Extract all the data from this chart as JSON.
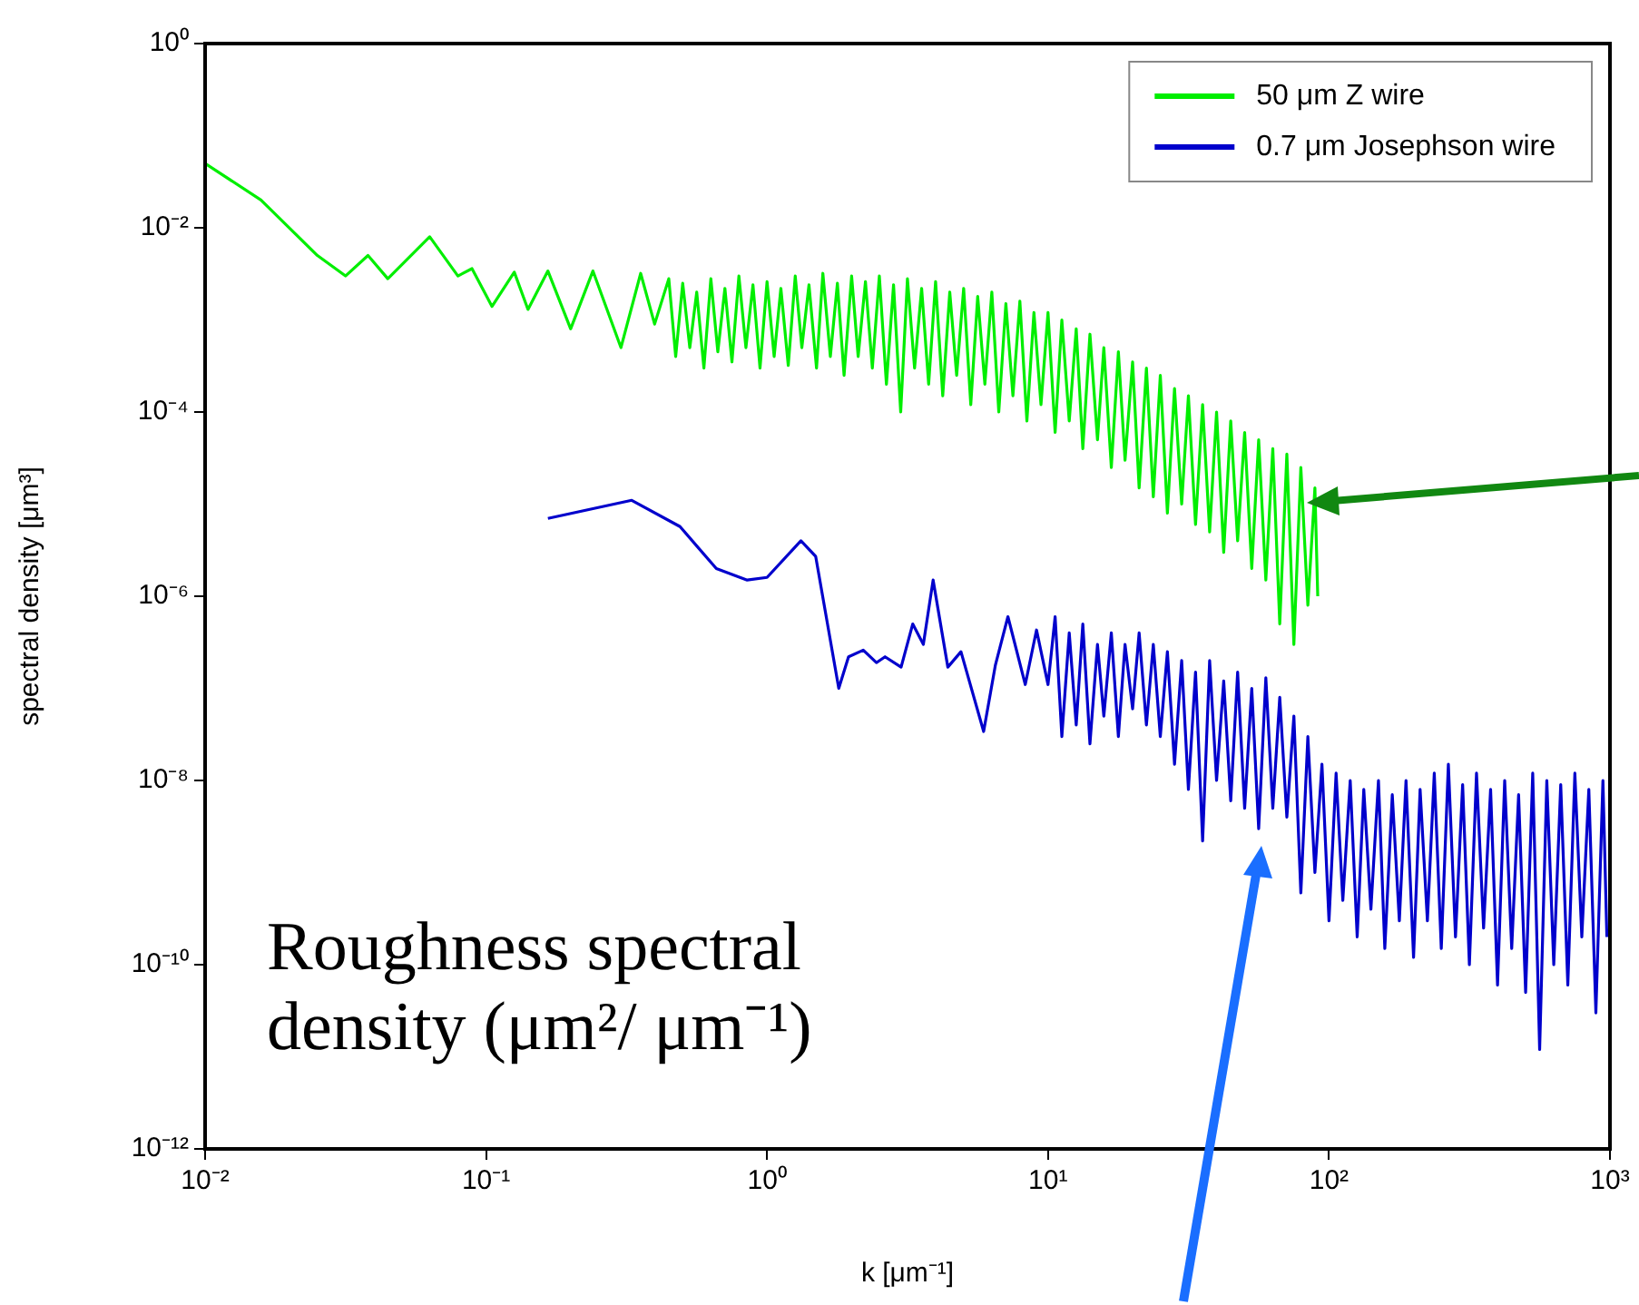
{
  "chart_data": {
    "type": "line",
    "xlabel": "k [μm⁻¹]",
    "ylabel": "spectral density [μm³]",
    "log": "xy",
    "grid": false,
    "legend": "top right",
    "marker": "none",
    "line_style": "solid",
    "xlim": [
      0.01,
      1000
    ],
    "xticks": [
      {
        "value": 0.01,
        "label": "10⁻²"
      },
      {
        "value": 0.1,
        "label": "10⁻¹"
      },
      {
        "value": 1,
        "label": "10⁰"
      },
      {
        "value": 10,
        "label": "10¹"
      },
      {
        "value": 100,
        "label": "10²"
      },
      {
        "value": 1000,
        "label": "10³"
      }
    ],
    "ylim": [
      1e-12,
      1
    ],
    "yticks": [
      {
        "value": 1e-12,
        "label": "10⁻¹²"
      },
      {
        "value": 1e-10,
        "label": "10⁻¹⁰"
      },
      {
        "value": 1e-08,
        "label": "10⁻⁸"
      },
      {
        "value": 1e-06,
        "label": "10⁻⁶"
      },
      {
        "value": 0.0001,
        "label": "10⁻⁴"
      },
      {
        "value": 0.01,
        "label": "10⁻²"
      },
      {
        "value": 1,
        "label": "10⁰"
      }
    ],
    "annotations": [
      "Roughness spectral density (μm²/ μm⁻¹)"
    ],
    "series": [
      {
        "name": "50 μm Z wire",
        "color": "#00ee00",
        "x": [
          0.01,
          0.0158,
          0.0251,
          0.0316,
          0.038,
          0.0447,
          0.063,
          0.0794,
          0.0891,
          0.105,
          0.126,
          0.141,
          0.166,
          0.2,
          0.24,
          0.302,
          0.355,
          0.398,
          0.447,
          0.473,
          0.501,
          0.531,
          0.562,
          0.596,
          0.631,
          0.668,
          0.708,
          0.75,
          0.794,
          0.841,
          0.891,
          0.944,
          1.0,
          1.06,
          1.12,
          1.19,
          1.26,
          1.33,
          1.41,
          1.5,
          1.58,
          1.68,
          1.78,
          1.88,
          2.0,
          2.11,
          2.24,
          2.37,
          2.51,
          2.66,
          2.82,
          2.99,
          3.16,
          3.35,
          3.55,
          3.76,
          3.98,
          4.22,
          4.47,
          4.73,
          5.01,
          5.31,
          5.62,
          5.96,
          6.31,
          6.68,
          7.08,
          7.5,
          7.94,
          8.41,
          8.91,
          9.44,
          10,
          10.6,
          11.2,
          11.9,
          12.6,
          13.3,
          14.1,
          15,
          15.8,
          16.8,
          17.8,
          18.8,
          20,
          21.1,
          22.4,
          23.7,
          25.1,
          26.6,
          28.2,
          29.9,
          31.6,
          33.5,
          35.5,
          37.6,
          39.8,
          42.2,
          44.7,
          47.3,
          50.1,
          53.1,
          56.2,
          59.6,
          63.1,
          66.8,
          70.8,
          75,
          79.4,
          84.1,
          89.1,
          91.2
        ],
        "values": [
          0.05,
          0.02,
          0.005,
          0.003,
          0.005,
          0.0028,
          0.008,
          0.003,
          0.0036,
          0.0014,
          0.0033,
          0.0013,
          0.0034,
          0.0008,
          0.0034,
          0.0005,
          0.0032,
          0.0009,
          0.0028,
          0.0004,
          0.0025,
          0.0005,
          0.002,
          0.0003,
          0.0028,
          0.00045,
          0.0022,
          0.00035,
          0.003,
          0.0005,
          0.0024,
          0.0003,
          0.0026,
          0.0004,
          0.0022,
          0.00032,
          0.003,
          0.0005,
          0.0024,
          0.0003,
          0.0032,
          0.0004,
          0.0025,
          0.00025,
          0.003,
          0.0004,
          0.0026,
          0.0003,
          0.003,
          0.0002,
          0.0024,
          0.0001,
          0.0028,
          0.0003,
          0.0022,
          0.0002,
          0.0026,
          0.00015,
          0.002,
          0.00025,
          0.0022,
          0.00012,
          0.0018,
          0.0002,
          0.002,
          0.0001,
          0.0015,
          0.00015,
          0.0016,
          8e-05,
          0.0012,
          0.00012,
          0.0012,
          6e-05,
          0.001,
          8e-05,
          0.0008,
          4e-05,
          0.0007,
          5e-05,
          0.0005,
          2.5e-05,
          0.00045,
          3e-05,
          0.00035,
          1.5e-05,
          0.0003,
          1.2e-05,
          0.00025,
          8e-06,
          0.00018,
          1e-05,
          0.00015,
          6e-06,
          0.00012,
          5e-06,
          0.0001,
          3e-06,
          8e-05,
          4e-06,
          6e-05,
          2e-06,
          5e-05,
          1.5e-06,
          4e-05,
          5e-07,
          3.5e-05,
          3e-07,
          2.5e-05,
          8e-07,
          1.5e-05,
          1e-06
        ]
      },
      {
        "name": "0.7 μm Josephson wire",
        "color": "#0000cc",
        "x": [
          0.166,
          0.33,
          0.49,
          0.66,
          0.85,
          1.0,
          1.32,
          1.49,
          1.8,
          1.95,
          2.2,
          2.45,
          2.63,
          3.0,
          3.3,
          3.6,
          3.9,
          4.4,
          4.9,
          5.9,
          6.5,
          7.2,
          8.3,
          9.1,
          10,
          10.6,
          11.2,
          11.9,
          12.6,
          13.3,
          14.1,
          15,
          15.8,
          16.8,
          17.8,
          18.8,
          20,
          21.1,
          22.4,
          23.7,
          25.1,
          26.6,
          28.2,
          29.9,
          31.6,
          33.5,
          35.5,
          37.6,
          39.8,
          42.2,
          44.7,
          47.3,
          50.1,
          53.1,
          56.2,
          59.6,
          63.1,
          66.8,
          70.8,
          75,
          79.4,
          84.1,
          89.1,
          94.4,
          100,
          106,
          112,
          119,
          126,
          133,
          141,
          150,
          158,
          168,
          178,
          188,
          200,
          211,
          224,
          237,
          251,
          266,
          282,
          299,
          316,
          335,
          355,
          376,
          398,
          422,
          447,
          473,
          501,
          531,
          562,
          596,
          631,
          668,
          708,
          750,
          794,
          841,
          891,
          944,
          975
        ],
        "values": [
          7e-06,
          1.1e-05,
          5.7e-06,
          2e-06,
          1.5e-06,
          1.6e-06,
          4e-06,
          2.7e-06,
          1e-07,
          2.2e-07,
          2.6e-07,
          1.9e-07,
          2.2e-07,
          1.7e-07,
          5e-07,
          3e-07,
          1.5e-06,
          1.7e-07,
          2.5e-07,
          3.4e-08,
          1.8e-07,
          6e-07,
          1.1e-07,
          4.3e-07,
          1.1e-07,
          6e-07,
          3e-08,
          4e-07,
          4e-08,
          5e-07,
          2.5e-08,
          3e-07,
          5e-08,
          4e-07,
          3e-08,
          3e-07,
          6e-08,
          4e-07,
          4e-08,
          3e-07,
          3e-08,
          2.5e-07,
          1.5e-08,
          2e-07,
          8e-09,
          1.5e-07,
          2.2e-09,
          2e-07,
          1e-08,
          1.2e-07,
          6e-09,
          1.5e-07,
          5e-09,
          1e-07,
          3e-09,
          1.3e-07,
          5e-09,
          8e-08,
          4e-09,
          5e-08,
          6e-10,
          3e-08,
          1e-09,
          1.5e-08,
          3e-10,
          1.2e-08,
          5e-10,
          1e-08,
          2e-10,
          8e-09,
          4e-10,
          1e-08,
          1.5e-10,
          7e-09,
          3e-10,
          1e-08,
          1.2e-10,
          8e-09,
          3e-10,
          1.2e-08,
          1.5e-10,
          1.5e-08,
          2e-10,
          9e-09,
          1e-10,
          1.2e-08,
          2.5e-10,
          8e-09,
          6e-11,
          1e-08,
          1.5e-10,
          7e-09,
          5e-11,
          1.2e-08,
          1.2e-11,
          1e-08,
          1e-10,
          9e-09,
          6e-11,
          1.2e-08,
          2e-10,
          8e-09,
          3e-11,
          1e-08,
          2e-10
        ]
      }
    ]
  }
}
